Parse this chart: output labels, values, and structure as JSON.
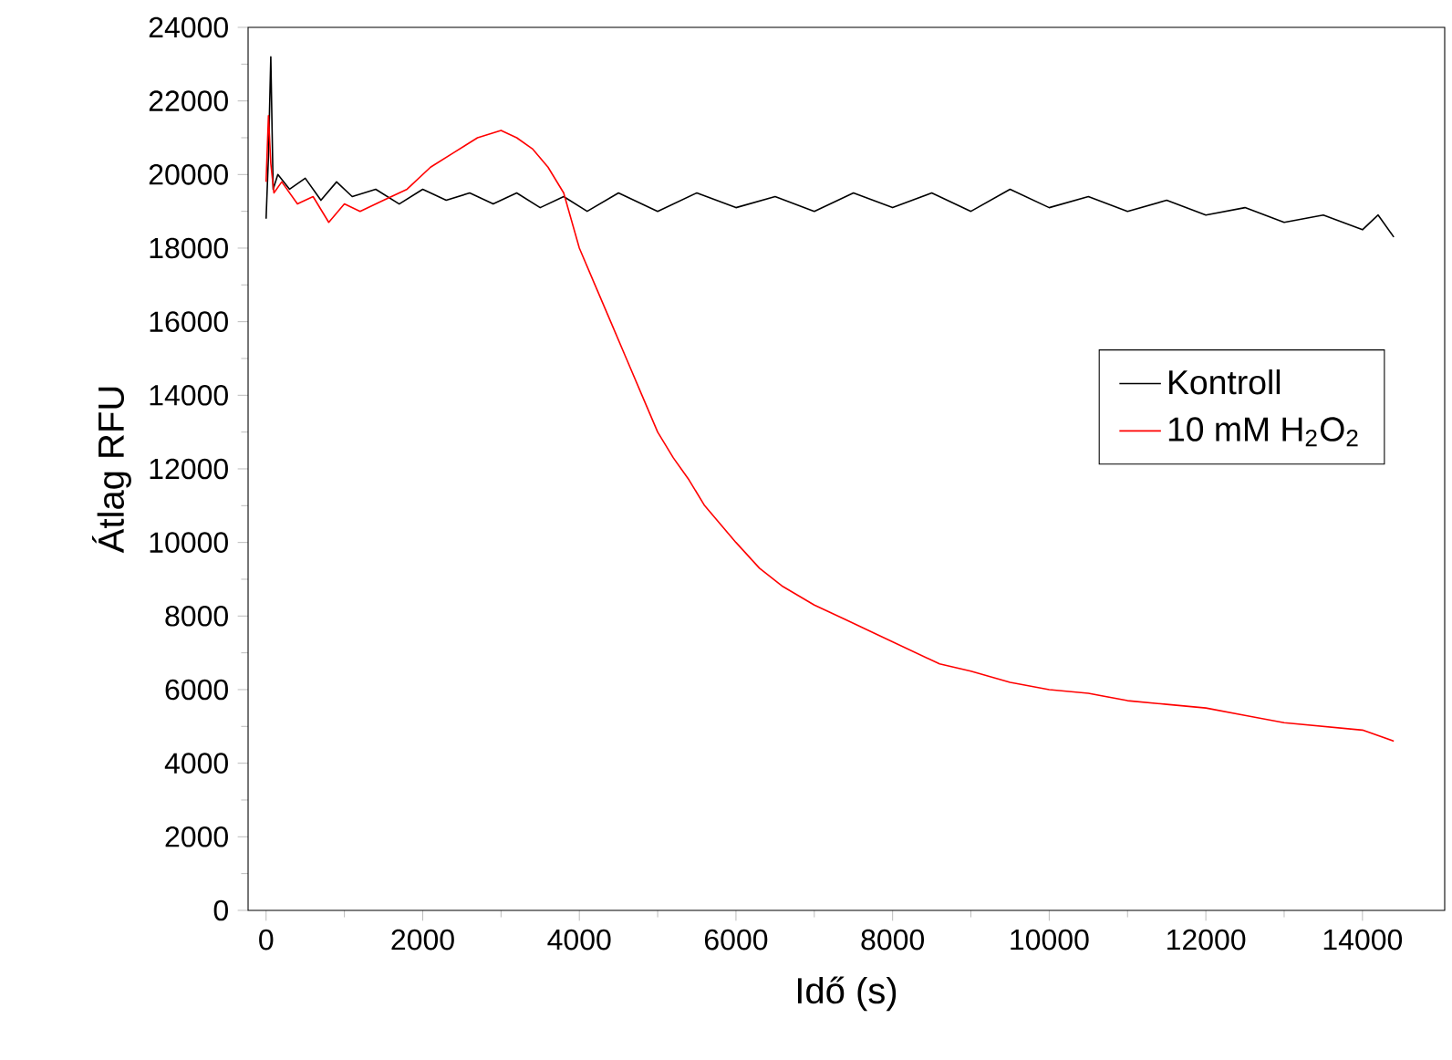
{
  "chart_data": {
    "type": "line",
    "xlabel": "Idő (s)",
    "ylabel": "Átlag RFU",
    "xlim": [
      -230,
      15050
    ],
    "ylim": [
      0,
      24000
    ],
    "xticks": [
      0,
      2000,
      4000,
      6000,
      8000,
      10000,
      12000,
      14000
    ],
    "yticks": [
      0,
      2000,
      4000,
      6000,
      8000,
      10000,
      12000,
      14000,
      16000,
      18000,
      20000,
      22000,
      24000
    ],
    "grid": false,
    "legend": "center right",
    "marker": "none",
    "line_style": "solid",
    "series": [
      {
        "name": "Kontroll",
        "color": "#000000",
        "x": [
          0,
          30,
          60,
          90,
          150,
          300,
          500,
          700,
          900,
          1100,
          1400,
          1700,
          2000,
          2300,
          2600,
          2900,
          3200,
          3500,
          3800,
          4100,
          4500,
          5000,
          5500,
          6000,
          6500,
          7000,
          7500,
          8000,
          8500,
          9000,
          9500,
          10000,
          10500,
          11000,
          11500,
          12000,
          12500,
          13000,
          13500,
          14000,
          14200,
          14400
        ],
        "values": [
          18800,
          20500,
          23200,
          19600,
          20000,
          19600,
          19900,
          19300,
          19800,
          19400,
          19600,
          19200,
          19600,
          19300,
          19500,
          19200,
          19500,
          19100,
          19400,
          19000,
          19500,
          19000,
          19500,
          19100,
          19400,
          19000,
          19500,
          19100,
          19500,
          19000,
          19600,
          19100,
          19400,
          19000,
          19300,
          18900,
          19100,
          18700,
          18900,
          18500,
          18900,
          18300
        ]
      },
      {
        "name": "10 mM H$_{2}$O$_{2}$",
        "color": "#ff0000",
        "x": [
          0,
          30,
          60,
          100,
          200,
          400,
          600,
          800,
          1000,
          1200,
          1500,
          1800,
          2100,
          2400,
          2700,
          3000,
          3200,
          3400,
          3600,
          3800,
          4000,
          4200,
          4400,
          4600,
          4800,
          5000,
          5200,
          5400,
          5600,
          5800,
          6000,
          6300,
          6600,
          7000,
          7400,
          7800,
          8200,
          8600,
          9000,
          9500,
          10000,
          10500,
          11000,
          11500,
          12000,
          12500,
          13000,
          13500,
          14000,
          14400
        ],
        "values": [
          19800,
          21600,
          20300,
          19500,
          19800,
          19200,
          19400,
          18700,
          19200,
          19000,
          19300,
          19600,
          20200,
          20600,
          21000,
          21200,
          21000,
          20700,
          20200,
          19500,
          18000,
          17000,
          16000,
          15000,
          14000,
          13000,
          12300,
          11700,
          11000,
          10500,
          10000,
          9300,
          8800,
          8300,
          7900,
          7500,
          7100,
          6700,
          6500,
          6200,
          6000,
          5900,
          5700,
          5600,
          5500,
          5300,
          5100,
          5000,
          4900,
          4600
        ]
      }
    ]
  }
}
